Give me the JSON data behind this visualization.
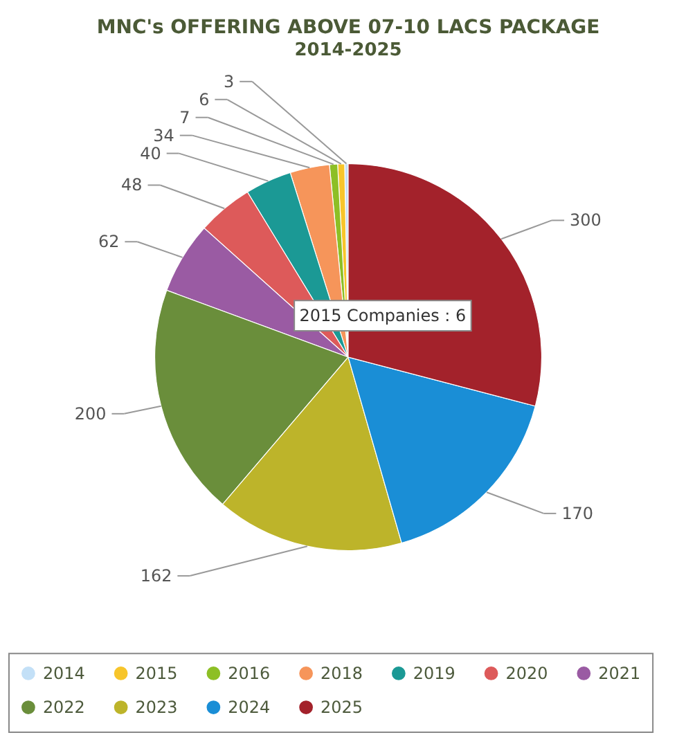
{
  "chart_data": {
    "type": "pie",
    "title": "MNC's OFFERING ABOVE 07-10 LACS PACKAGE",
    "subtitle": "2014-2025",
    "categories": [
      "2014",
      "2015",
      "2016",
      "2018",
      "2019",
      "2020",
      "2021",
      "2022",
      "2023",
      "2024",
      "2025"
    ],
    "values": [
      3,
      6,
      7,
      34,
      40,
      48,
      62,
      200,
      162,
      170,
      300
    ],
    "colors": [
      "#c3e0f7",
      "#f7c52b",
      "#8dbf25",
      "#f6955a",
      "#1b9995",
      "#dd5a5a",
      "#9a5ba3",
      "#6a8e3b",
      "#bdb42a",
      "#1a8ed6",
      "#a3222b"
    ],
    "data_labels": true,
    "legend": "bottom",
    "annotations": [
      "2015 Companies : 6"
    ]
  }
}
